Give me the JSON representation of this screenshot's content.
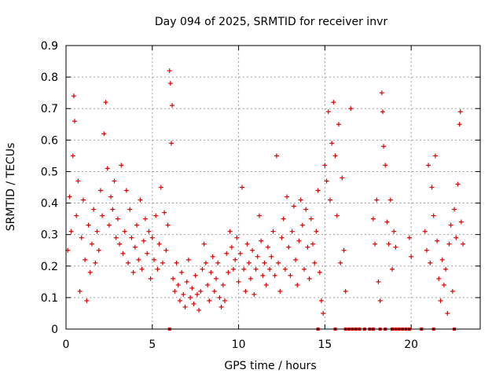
{
  "chart_data": {
    "type": "scatter",
    "title": "Day 094 of 2025, SRMTID for receiver invr",
    "xlabel": "GPS time / hours",
    "ylabel": "SRMTID / TECUs",
    "xlim": [
      0,
      24
    ],
    "ylim": [
      0,
      0.9
    ],
    "xticks": [
      0,
      5,
      10,
      15,
      20
    ],
    "xtick_labels": [
      "0",
      "5",
      "10",
      "15",
      "20"
    ],
    "yticks": [
      0,
      0.1,
      0.2,
      0.3,
      0.4,
      0.5,
      0.6,
      0.7,
      0.8,
      0.9
    ],
    "ytick_labels": [
      "0",
      "0.1",
      "0.2",
      "0.3",
      "0.4",
      "0.5",
      "0.6",
      "0.7",
      "0.8",
      "0.9"
    ],
    "grid": true,
    "marker": "+",
    "color": "#e00000",
    "series": [
      {
        "name": "SRMTID",
        "points": [
          [
            0.1,
            0.25
          ],
          [
            0.2,
            0.42
          ],
          [
            0.3,
            0.31
          ],
          [
            0.4,
            0.55
          ],
          [
            0.45,
            0.74
          ],
          [
            0.5,
            0.66
          ],
          [
            0.6,
            0.36
          ],
          [
            0.7,
            0.47
          ],
          [
            0.8,
            0.12
          ],
          [
            0.9,
            0.29
          ],
          [
            1.0,
            0.41
          ],
          [
            1.1,
            0.22
          ],
          [
            1.2,
            0.09
          ],
          [
            1.3,
            0.33
          ],
          [
            1.4,
            0.18
          ],
          [
            1.5,
            0.27
          ],
          [
            1.6,
            0.38
          ],
          [
            1.7,
            0.21
          ],
          [
            1.8,
            0.31
          ],
          [
            1.9,
            0.25
          ],
          [
            2.0,
            0.44
          ],
          [
            2.1,
            0.36
          ],
          [
            2.2,
            0.62
          ],
          [
            2.3,
            0.72
          ],
          [
            2.4,
            0.51
          ],
          [
            2.5,
            0.33
          ],
          [
            2.6,
            0.42
          ],
          [
            2.7,
            0.38
          ],
          [
            2.8,
            0.47
          ],
          [
            2.9,
            0.29
          ],
          [
            3.0,
            0.35
          ],
          [
            3.1,
            0.27
          ],
          [
            3.2,
            0.52
          ],
          [
            3.3,
            0.24
          ],
          [
            3.4,
            0.31
          ],
          [
            3.5,
            0.44
          ],
          [
            3.6,
            0.21
          ],
          [
            3.7,
            0.38
          ],
          [
            3.8,
            0.29
          ],
          [
            3.9,
            0.18
          ],
          [
            4.0,
            0.26
          ],
          [
            4.1,
            0.33
          ],
          [
            4.2,
            0.22
          ],
          [
            4.3,
            0.41
          ],
          [
            4.4,
            0.19
          ],
          [
            4.5,
            0.28
          ],
          [
            4.6,
            0.35
          ],
          [
            4.7,
            0.24
          ],
          [
            4.8,
            0.31
          ],
          [
            4.9,
            0.16
          ],
          [
            5.0,
            0.29
          ],
          [
            5.1,
            0.22
          ],
          [
            5.2,
            0.36
          ],
          [
            5.3,
            0.19
          ],
          [
            5.4,
            0.27
          ],
          [
            5.5,
            0.45
          ],
          [
            5.6,
            0.21
          ],
          [
            5.7,
            0.37
          ],
          [
            5.8,
            0.25
          ],
          [
            5.9,
            0.33
          ],
          [
            6.0,
            0.82
          ],
          [
            6.05,
            0.78
          ],
          [
            6.1,
            0.59
          ],
          [
            6.15,
            0.71
          ],
          [
            6.2,
            0.16
          ],
          [
            6.3,
            0.12
          ],
          [
            6.4,
            0.21
          ],
          [
            6.5,
            0.14
          ],
          [
            6.6,
            0.09
          ],
          [
            6.7,
            0.18
          ],
          [
            6.8,
            0.11
          ],
          [
            6.9,
            0.07
          ],
          [
            7.0,
            0.15
          ],
          [
            7.1,
            0.22
          ],
          [
            7.2,
            0.1
          ],
          [
            7.3,
            0.13
          ],
          [
            7.4,
            0.08
          ],
          [
            7.5,
            0.17
          ],
          [
            7.6,
            0.11
          ],
          [
            7.7,
            0.06
          ],
          [
            7.8,
            0.12
          ],
          [
            7.9,
            0.19
          ],
          [
            8.0,
            0.27
          ],
          [
            8.1,
            0.21
          ],
          [
            8.2,
            0.14
          ],
          [
            8.3,
            0.09
          ],
          [
            8.4,
            0.18
          ],
          [
            8.5,
            0.23
          ],
          [
            8.6,
            0.12
          ],
          [
            8.7,
            0.16
          ],
          [
            8.8,
            0.21
          ],
          [
            8.9,
            0.1
          ],
          [
            9.0,
            0.07
          ],
          [
            9.1,
            0.14
          ],
          [
            9.2,
            0.09
          ],
          [
            9.3,
            0.24
          ],
          [
            9.4,
            0.18
          ],
          [
            9.5,
            0.31
          ],
          [
            9.6,
            0.26
          ],
          [
            9.7,
            0.19
          ],
          [
            9.8,
            0.22
          ],
          [
            9.9,
            0.29
          ],
          [
            10.0,
            0.15
          ],
          [
            10.1,
            0.24
          ],
          [
            10.2,
            0.45
          ],
          [
            10.3,
            0.19
          ],
          [
            10.4,
            0.12
          ],
          [
            10.5,
            0.27
          ],
          [
            10.6,
            0.21
          ],
          [
            10.7,
            0.16
          ],
          [
            10.8,
            0.25
          ],
          [
            10.9,
            0.11
          ],
          [
            11.0,
            0.19
          ],
          [
            11.1,
            0.23
          ],
          [
            11.2,
            0.36
          ],
          [
            11.3,
            0.28
          ],
          [
            11.4,
            0.17
          ],
          [
            11.5,
            0.21
          ],
          [
            11.6,
            0.14
          ],
          [
            11.7,
            0.26
          ],
          [
            11.8,
            0.19
          ],
          [
            11.9,
            0.23
          ],
          [
            12.0,
            0.31
          ],
          [
            12.1,
            0.17
          ],
          [
            12.2,
            0.55
          ],
          [
            12.3,
            0.21
          ],
          [
            12.4,
            0.12
          ],
          [
            12.5,
            0.29
          ],
          [
            12.6,
            0.35
          ],
          [
            12.7,
            0.19
          ],
          [
            12.8,
            0.42
          ],
          [
            12.9,
            0.26
          ],
          [
            13.0,
            0.17
          ],
          [
            13.1,
            0.31
          ],
          [
            13.2,
            0.39
          ],
          [
            13.3,
            0.22
          ],
          [
            13.4,
            0.14
          ],
          [
            13.5,
            0.28
          ],
          [
            13.6,
            0.41
          ],
          [
            13.7,
            0.33
          ],
          [
            13.8,
            0.19
          ],
          [
            13.9,
            0.38
          ],
          [
            14.0,
            0.26
          ],
          [
            14.1,
            0.16
          ],
          [
            14.2,
            0.35
          ],
          [
            14.3,
            0.27
          ],
          [
            14.4,
            0.21
          ],
          [
            14.5,
            0.31
          ],
          [
            14.6,
            0.44
          ],
          [
            14.7,
            0.18
          ],
          [
            14.8,
            0.09
          ],
          [
            14.9,
            0.05
          ],
          [
            15.0,
            0.52
          ],
          [
            15.1,
            0.47
          ],
          [
            15.2,
            0.69
          ],
          [
            15.3,
            0.41
          ],
          [
            15.4,
            0.59
          ],
          [
            15.5,
            0.72
          ],
          [
            15.6,
            0.55
          ],
          [
            15.7,
            0.36
          ],
          [
            15.8,
            0.65
          ],
          [
            15.9,
            0.21
          ],
          [
            16.0,
            0.48
          ],
          [
            16.1,
            0.25
          ],
          [
            16.2,
            0.12
          ],
          [
            16.5,
            0.7
          ],
          [
            17.8,
            0.35
          ],
          [
            17.9,
            0.27
          ],
          [
            18.0,
            0.41
          ],
          [
            18.1,
            0.15
          ],
          [
            18.2,
            0.09
          ],
          [
            18.3,
            0.75
          ],
          [
            18.35,
            0.69
          ],
          [
            18.4,
            0.58
          ],
          [
            18.5,
            0.52
          ],
          [
            18.6,
            0.34
          ],
          [
            18.7,
            0.27
          ],
          [
            18.8,
            0.41
          ],
          [
            18.9,
            0.19
          ],
          [
            19.0,
            0.31
          ],
          [
            19.1,
            0.26
          ],
          [
            19.9,
            0.29
          ],
          [
            20.0,
            0.23
          ],
          [
            20.8,
            0.31
          ],
          [
            20.9,
            0.25
          ],
          [
            21.0,
            0.52
          ],
          [
            21.1,
            0.21
          ],
          [
            21.2,
            0.45
          ],
          [
            21.3,
            0.36
          ],
          [
            21.4,
            0.55
          ],
          [
            21.5,
            0.28
          ],
          [
            21.6,
            0.16
          ],
          [
            21.7,
            0.09
          ],
          [
            21.8,
            0.22
          ],
          [
            21.9,
            0.14
          ],
          [
            22.0,
            0.19
          ],
          [
            22.1,
            0.05
          ],
          [
            22.2,
            0.27
          ],
          [
            22.3,
            0.33
          ],
          [
            22.4,
            0.12
          ],
          [
            22.5,
            0.38
          ],
          [
            22.6,
            0.29
          ],
          [
            22.7,
            0.46
          ],
          [
            22.8,
            0.65
          ],
          [
            22.85,
            0.69
          ],
          [
            22.9,
            0.34
          ],
          [
            23.0,
            0.27
          ]
        ]
      }
    ],
    "zero_points_x": [
      6.0,
      14.6,
      15.6,
      16.2,
      16.4,
      16.6,
      16.8,
      17.0,
      17.3,
      17.6,
      17.8,
      18.2,
      18.5,
      18.9,
      19.1,
      19.3,
      19.5,
      19.7,
      19.9,
      20.6,
      21.3,
      22.5
    ]
  }
}
